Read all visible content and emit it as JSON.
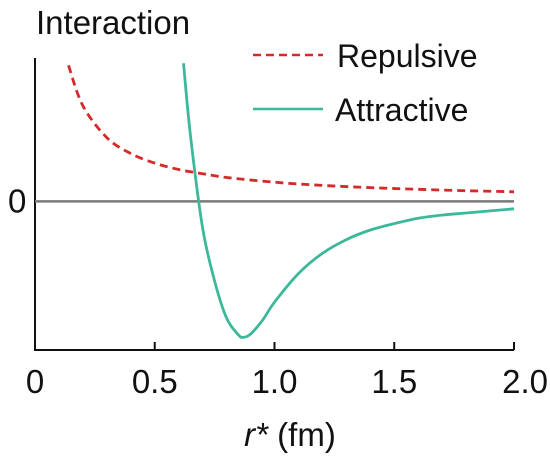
{
  "chart_data": {
    "type": "line",
    "ylabel": "Interaction",
    "xlabel_symbol": "r*",
    "xlabel_unit": " (fm)",
    "xlim": [
      0,
      2.0
    ],
    "ylim": [
      -1.4,
      1.35
    ],
    "x_ticks": [
      0,
      0.5,
      1.0,
      1.5,
      2.0
    ],
    "x_tick_labels": [
      "0",
      "0.5",
      "1.0",
      "1.5",
      "2.0"
    ],
    "y_tick_labels": [
      {
        "value": 0,
        "label": "0"
      }
    ],
    "zero_line": true,
    "grid": false,
    "legend": {
      "placement": "top-right"
    },
    "series": [
      {
        "name": "Repulsive",
        "style": "dashed",
        "color": "#d42a2a",
        "x": [
          0.14,
          0.2,
          0.3,
          0.4,
          0.5,
          0.6,
          0.7,
          0.8,
          1.0,
          1.2,
          1.4,
          1.6,
          1.8,
          2.0
        ],
        "y": [
          1.28,
          0.9,
          0.6,
          0.45,
          0.36,
          0.3,
          0.26,
          0.225,
          0.18,
          0.15,
          0.129,
          0.113,
          0.1,
          0.09
        ]
      },
      {
        "name": "Attractive",
        "style": "solid",
        "color": "#3cb89a",
        "x": [
          0.62,
          0.65,
          0.7,
          0.75,
          0.8,
          0.85,
          0.87,
          0.9,
          0.95,
          1.0,
          1.1,
          1.2,
          1.3,
          1.4,
          1.5,
          1.6,
          1.7,
          1.8,
          1.9,
          2.0
        ],
        "y": [
          1.3,
          0.6,
          -0.25,
          -0.75,
          -1.1,
          -1.26,
          -1.28,
          -1.25,
          -1.12,
          -0.95,
          -0.68,
          -0.49,
          -0.36,
          -0.27,
          -0.21,
          -0.16,
          -0.13,
          -0.11,
          -0.09,
          -0.07
        ]
      }
    ]
  }
}
